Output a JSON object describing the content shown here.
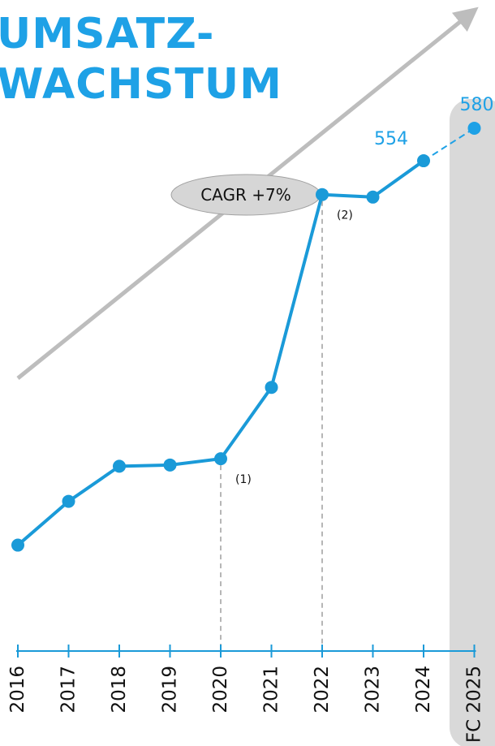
{
  "title": {
    "line1": "UMSATZ-",
    "line2": "WACHSTUM"
  },
  "cagr_label": "CAGR +7%",
  "colors": {
    "accent": "#1ea1e6",
    "line": "#1a9ad8",
    "trend_arrow": "#bdbdbd",
    "forecast_band": "#d9d9d9",
    "cagr_fill": "#d6d6d6",
    "dashed_marker": "#9e9e9e"
  },
  "chart_data": {
    "type": "line",
    "title": "UMSATZ-WACHSTUM",
    "categories": [
      "2016",
      "2017",
      "2018",
      "2019",
      "2020",
      "2021",
      "2022",
      "2023",
      "2024",
      "FC 2025"
    ],
    "series": [
      {
        "name": "",
        "values": [
          247,
          282,
          310,
          311,
          316,
          373,
          527,
          525,
          554,
          580
        ],
        "data_labels": [
          "",
          "",
          "",
          "",
          "",
          "",
          "",
          "",
          "554",
          "580"
        ],
        "forecast_from_index": 8
      }
    ],
    "forecast_category": "FC 2025",
    "annotations": [
      {
        "category": "2020",
        "label": "(1)"
      },
      {
        "category": "2022",
        "label": "(2)"
      }
    ],
    "trend": {
      "label": "CAGR +7%",
      "direction": "up"
    },
    "ylim": [
      130,
      650
    ],
    "grid": false,
    "legend": "none",
    "xlabel": "",
    "ylabel": ""
  }
}
